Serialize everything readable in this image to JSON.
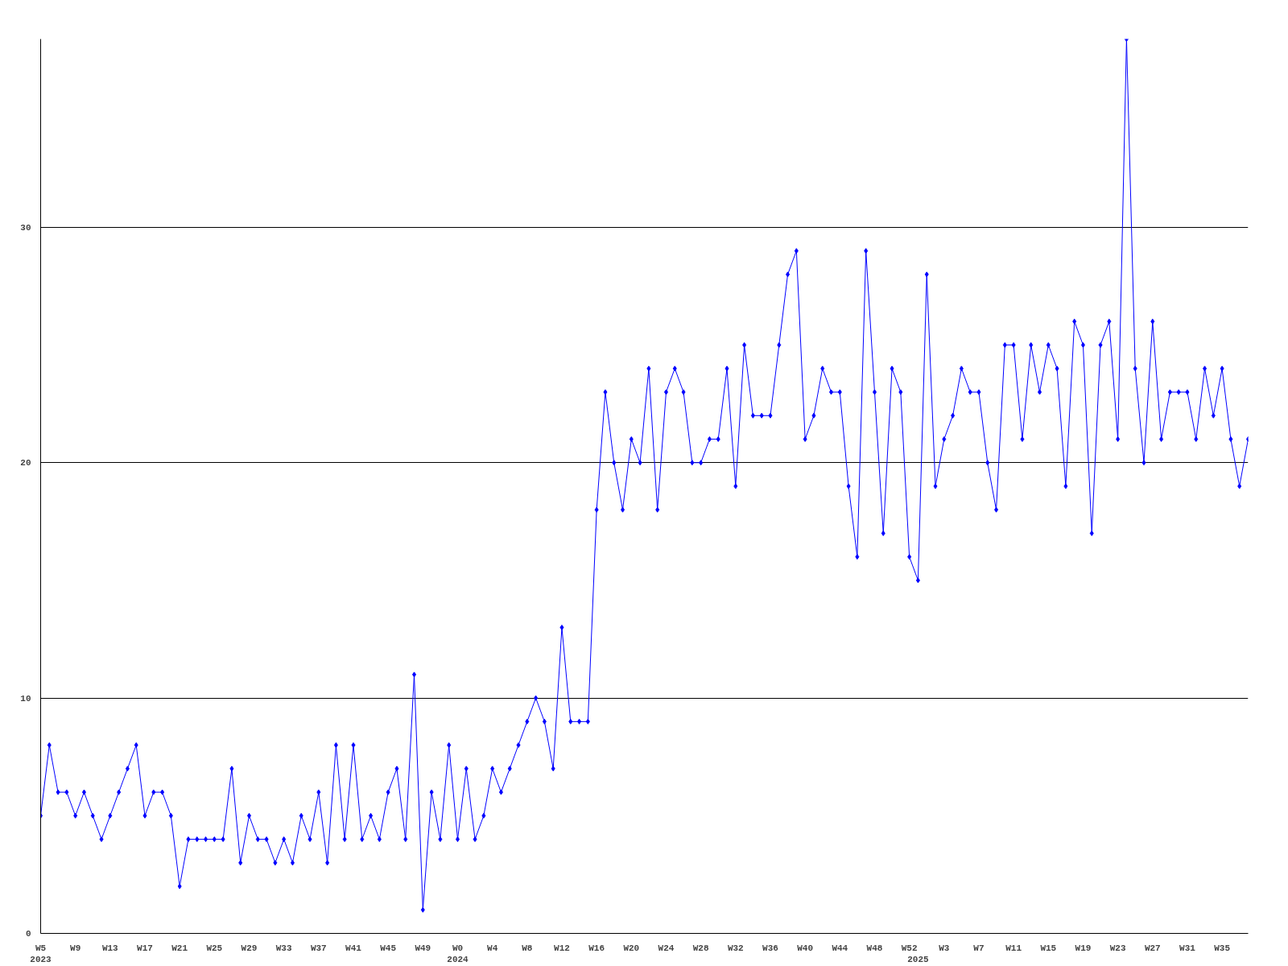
{
  "chart_data": {
    "type": "line",
    "categories": [
      "W5\n2023",
      null,
      null,
      null,
      "W9",
      null,
      null,
      null,
      "W13",
      null,
      null,
      null,
      "W17",
      null,
      null,
      null,
      "W21",
      null,
      null,
      null,
      "W25",
      null,
      null,
      null,
      "W29",
      null,
      null,
      null,
      "W33",
      null,
      null,
      null,
      "W37",
      null,
      null,
      null,
      "W41",
      null,
      null,
      null,
      "W45",
      null,
      null,
      null,
      "W49",
      null,
      null,
      null,
      "W0\n2024",
      null,
      null,
      null,
      "W4",
      null,
      null,
      null,
      "W8",
      null,
      null,
      null,
      "W12",
      null,
      null,
      null,
      "W16",
      null,
      null,
      null,
      "W20",
      null,
      null,
      null,
      "W24",
      null,
      null,
      null,
      "W28",
      null,
      null,
      null,
      "W32",
      null,
      null,
      null,
      "W36",
      null,
      null,
      null,
      "W40",
      null,
      null,
      null,
      "W44",
      null,
      null,
      null,
      "W48",
      null,
      null,
      null,
      "W52",
      "\n2025",
      null,
      null,
      "W3",
      null,
      null,
      null,
      "W7",
      null,
      null,
      null,
      "W11",
      null,
      null,
      null,
      "W15",
      null,
      null,
      null,
      "W19",
      null,
      null,
      null,
      "W23",
      null,
      null,
      null,
      "W27",
      null,
      null,
      null,
      "W31",
      null,
      null,
      null,
      "W35",
      null,
      null,
      null
    ],
    "series": [
      {
        "color": "#0000ff",
        "values": [
          5,
          8,
          6,
          6,
          5,
          6,
          5,
          4,
          5,
          6,
          7,
          8,
          5,
          6,
          6,
          5,
          2,
          4,
          4,
          4,
          4,
          4,
          7,
          3,
          5,
          4,
          4,
          3,
          4,
          3,
          5,
          4,
          6,
          3,
          8,
          4,
          8,
          4,
          5,
          4,
          6,
          7,
          4,
          11,
          1,
          6,
          4,
          8,
          4,
          7,
          4,
          5,
          7,
          6,
          7,
          8,
          9,
          10,
          9,
          7,
          13,
          9,
          9,
          9,
          18,
          23,
          20,
          18,
          21,
          20,
          24,
          18,
          23,
          24,
          23,
          20,
          20,
          21,
          21,
          24,
          19,
          25,
          22,
          22,
          22,
          25,
          28,
          29,
          21,
          22,
          24,
          23,
          23,
          19,
          16,
          29,
          23,
          17,
          24,
          23,
          16,
          15,
          28,
          19,
          21,
          22,
          24,
          23,
          23,
          20,
          18,
          25,
          25,
          21,
          25,
          23,
          25,
          24,
          19,
          26,
          25,
          17,
          25,
          26,
          21,
          38,
          24,
          20,
          26,
          21,
          23,
          23,
          23,
          21,
          24,
          22,
          24,
          21,
          19,
          21
        ]
      }
    ],
    "ylim": [
      0,
      38
    ],
    "yticks": [
      0,
      10,
      20,
      30
    ],
    "grid": "y",
    "marker": "diamond",
    "line_style": "solid"
  }
}
